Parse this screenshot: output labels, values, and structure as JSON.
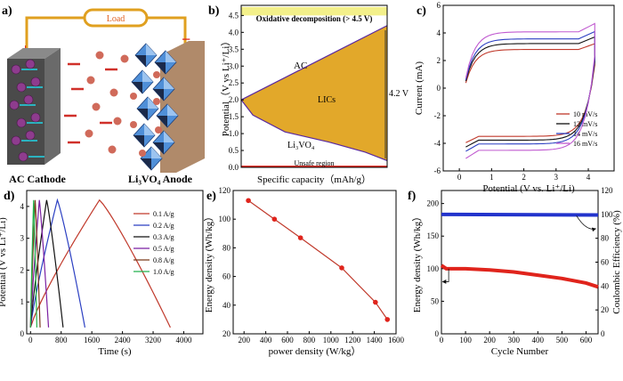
{
  "panel_labels": [
    "a)",
    "b)",
    "c)",
    "d)",
    "e)",
    "f)"
  ],
  "panel_a": {
    "load_label": "Load",
    "plus_sign": "+",
    "minus_sign": "−",
    "cathode_label": "AC Cathode",
    "anode_label": "Li₃VO₄ Anode",
    "colors": {
      "cathode": "#4a4a4a",
      "anode_plate": "#b08a6a",
      "octahedra": "#4f8fd8",
      "ions": "#d06a5a"
    }
  },
  "panel_b": {
    "banner_top": "Oxidative decomposition (> 4.5 V)",
    "banner_bottom": "Unsafe region",
    "label_ac": "AC",
    "label_lics": "LICs",
    "label_li3vo4": "Li₃VO₄",
    "voltage_label": "4.2 V",
    "xlabel": "Specific capacity（mAh/g）",
    "ylabel": "Potential（V vs Li⁺/Li）",
    "colors": {
      "fill": "#e2a82a",
      "top_band": "#f3f08a",
      "bottom_band": "#e0241c"
    }
  },
  "chart_data": [
    {
      "panel": "b",
      "type": "area",
      "title": "",
      "xlabel": "Specific capacity（mAh/g）",
      "ylabel": "Potential（V vs Li⁺/Li）",
      "ylim": [
        0,
        4.8
      ],
      "yticks": [
        "0.0",
        "0.5",
        "1.0",
        "1.5",
        "2.0",
        "2.5",
        "3.0",
        "3.5",
        "4.0",
        "4.5"
      ],
      "series": [
        {
          "name": "AC",
          "x": [
            0,
            1
          ],
          "y": [
            2.0,
            4.2
          ]
        },
        {
          "name": "Li₃VO₄",
          "x": [
            0,
            0.08,
            0.3,
            0.6,
            0.85,
            1
          ],
          "y": [
            2.0,
            1.55,
            1.05,
            0.75,
            0.45,
            0.2
          ]
        }
      ]
    },
    {
      "panel": "c",
      "type": "line",
      "xlabel": "Potential (V vs. Li⁺/Li)",
      "ylabel": "Current (mA)",
      "xlim": [
        -0.5,
        4.8
      ],
      "ylim": [
        -6,
        6
      ],
      "xticks": [
        "0",
        "1",
        "2",
        "3",
        "4"
      ],
      "yticks": [
        "-6",
        "-4",
        "-2",
        "0",
        "2",
        "4",
        "6"
      ],
      "series": [
        {
          "name": "10 mV/s",
          "color": "#c0392b",
          "upper": 3.3,
          "lower": -3.8
        },
        {
          "name": "12 mV/s",
          "color": "#111111",
          "upper": 3.8,
          "lower": -4.1
        },
        {
          "name": "14 mV/s",
          "color": "#2b3fc2",
          "upper": 4.2,
          "lower": -4.4
        },
        {
          "name": "16 mV/s",
          "color": "#c05ad0",
          "upper": 4.8,
          "lower": -4.9
        }
      ]
    },
    {
      "panel": "d",
      "type": "line",
      "xlabel": "Time (s)",
      "ylabel": "Potential (V vs Li⁺/Li)",
      "xlim": [
        -100,
        4500
      ],
      "ylim": [
        0,
        4.5
      ],
      "xticks": [
        "0",
        "800",
        "1600",
        "2400",
        "3200",
        "4000"
      ],
      "yticks": [
        "0",
        "1",
        "2",
        "3",
        "4"
      ],
      "series": [
        {
          "name": "0.1 A/g",
          "color": "#c0392b",
          "charge_end": 1800,
          "total": 3650
        },
        {
          "name": "0.2 A/g",
          "color": "#2b3fc2",
          "charge_end": 700,
          "total": 1420
        },
        {
          "name": "0.3 A/g",
          "color": "#111111",
          "charge_end": 420,
          "total": 850
        },
        {
          "name": "0.5 A/g",
          "color": "#7b1fa2",
          "charge_end": 230,
          "total": 470
        },
        {
          "name": "0.8 A/g",
          "color": "#7a3a1a",
          "charge_end": 120,
          "total": 250
        },
        {
          "name": "1.0 A/g",
          "color": "#22b14c",
          "charge_end": 80,
          "total": 165
        }
      ]
    },
    {
      "panel": "e",
      "type": "line",
      "xlabel": "power density (W/kg）",
      "ylabel": "Energy density (Wh/kg）",
      "xlim": [
        100,
        1600
      ],
      "ylim": [
        20,
        120
      ],
      "xticks": [
        "200",
        "400",
        "600",
        "800",
        "1000",
        "1200",
        "1400",
        "1600"
      ],
      "yticks": [
        "20",
        "40",
        "60",
        "80",
        "100",
        "120"
      ],
      "x": [
        240,
        480,
        720,
        1100,
        1410,
        1520
      ],
      "y": [
        113,
        100,
        87,
        66,
        42,
        30
      ]
    },
    {
      "panel": "f",
      "type": "line",
      "xlabel": "Cycle Number",
      "ylabel": "Energy density (Wh/kg）",
      "ylabel_right": "Coulombic Efficiency (%)",
      "xlim": [
        0,
        650
      ],
      "ylim": [
        0,
        220
      ],
      "ylim_right": [
        0,
        120
      ],
      "xticks": [
        "0",
        "100",
        "200",
        "300",
        "400",
        "500",
        "600"
      ],
      "yticks": [
        "0",
        "50",
        "100",
        "150",
        "200"
      ],
      "yticks_right": [
        "0",
        "20",
        "40",
        "60",
        "80",
        "100",
        "120"
      ],
      "series": [
        {
          "name": "Energy density",
          "color": "#e0241c",
          "x": [
            0,
            20,
            100,
            200,
            300,
            400,
            500,
            600,
            650
          ],
          "y": [
            105,
            100,
            100,
            98,
            95,
            90,
            85,
            78,
            72
          ]
        },
        {
          "name": "Coulombic efficiency",
          "color": "#2233cc",
          "x": [
            0,
            650
          ],
          "y": [
            100,
            99.5
          ]
        }
      ]
    }
  ]
}
